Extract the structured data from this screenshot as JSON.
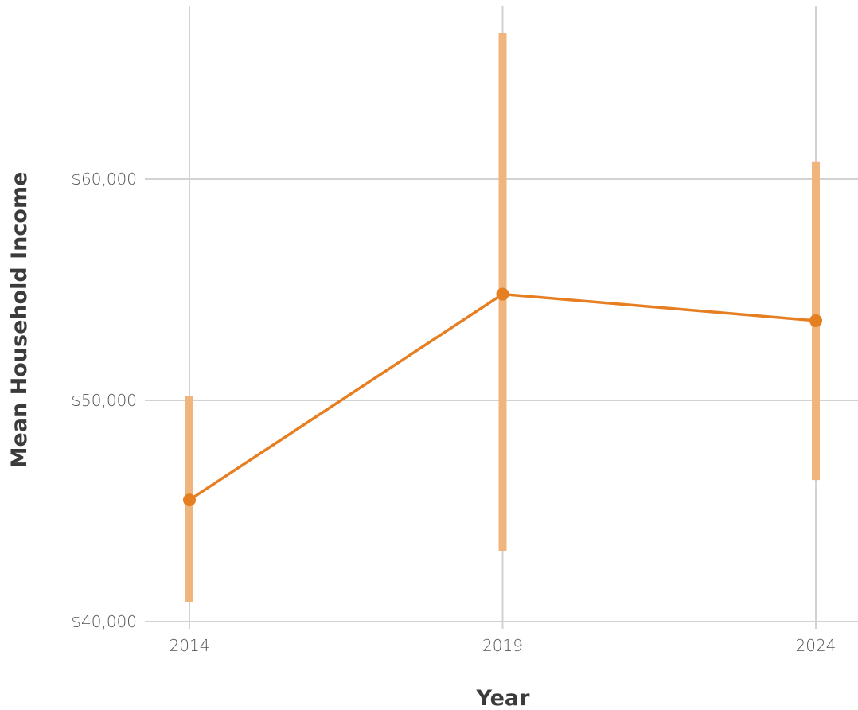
{
  "chart_data": {
    "type": "line",
    "title": "",
    "xlabel": "Year",
    "ylabel": "Mean Household Income",
    "categories": [
      "2014",
      "2019",
      "2024"
    ],
    "x": [
      2014,
      2019,
      2024
    ],
    "series": [
      {
        "values": [
          45500,
          54800,
          53600
        ],
        "ci_lower": [
          40900,
          43200,
          46400
        ],
        "ci_upper": [
          50200,
          66600,
          60800
        ]
      }
    ],
    "ylim": [
      40000,
      66600
    ],
    "xlim": [
      2014,
      2024
    ],
    "y_ticks": [
      40000,
      50000,
      60000
    ],
    "y_tick_labels": [
      "$40,000",
      "$50,000",
      "$60,000"
    ],
    "x_ticks": [
      2014,
      2019,
      2024
    ],
    "x_tick_labels": [
      "2014",
      "2019",
      "2024"
    ],
    "grid": true,
    "legend": "none",
    "colors": {
      "line": "#e67e22",
      "point": "#e67e22",
      "ci": "#f0b47d",
      "grid": "#d2d2d2",
      "tick_text": "#555555",
      "axis_title": "#3b3b3b"
    }
  }
}
